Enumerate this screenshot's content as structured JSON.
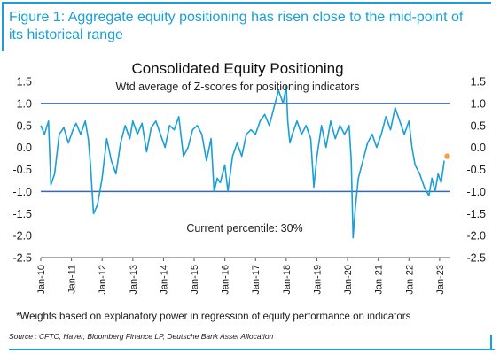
{
  "figure": {
    "title": "Figure 1: Aggregate equity positioning has risen close to the mid-point of its historical range",
    "footnote": "*Weights based on explanatory power in regression of equity performance on indicators",
    "source": "Source : CFTC, Haver, Bloomberg Finance LP, Deutsche Bank Asset Allocation"
  },
  "colors": {
    "accent": "#1a9fd6",
    "series": "#1a9fd6",
    "marker": "#f0a050",
    "reference_lines": "#3366cc"
  },
  "chart_data": {
    "type": "line",
    "title": "Consolidated Equity Positioning",
    "subtitle": "Wtd average of Z-scores for positioning indicators",
    "annotation": "Current percentile: 30%",
    "ylim": [
      -2.5,
      1.5
    ],
    "yticks_left": [
      "1.5",
      "1.0",
      "0.5",
      "0.0",
      "-0.5",
      "-1.0",
      "-1.5",
      "-2.0",
      "-2.5"
    ],
    "yticks_right": [
      "1.5",
      "1.0",
      "0.5",
      "0.0",
      "-0.5",
      "-1.0",
      "-1.5",
      "-2.0",
      "-2.5"
    ],
    "yticks_values": [
      1.5,
      1.0,
      0.5,
      0.0,
      -0.5,
      -1.0,
      -1.5,
      -2.0,
      -2.5
    ],
    "xticks": [
      "Jan-10",
      "Jan-11",
      "Jan-12",
      "Jan-13",
      "Jan-14",
      "Jan-15",
      "Jan-16",
      "Jan-17",
      "Jan-18",
      "Jan-19",
      "Jan-20",
      "Jan-21",
      "Jan-22",
      "Jan-23"
    ],
    "xticks_values": [
      2010,
      2011,
      2012,
      2013,
      2014,
      2015,
      2016,
      2017,
      2018,
      2019,
      2020,
      2021,
      2022,
      2023
    ],
    "xlim": [
      2010,
      2023.35
    ],
    "reference_lines": [
      1.0,
      -1.0
    ],
    "grid": false,
    "series": [
      {
        "x": [
          2010.0,
          2010.12,
          2010.25,
          2010.33,
          2010.45,
          2010.6,
          2010.75,
          2010.9,
          2011.05,
          2011.15,
          2011.3,
          2011.45,
          2011.55,
          2011.62,
          2011.72,
          2011.85,
          2012.0,
          2012.15,
          2012.3,
          2012.45,
          2012.6,
          2012.75,
          2012.9,
          2013.0,
          2013.15,
          2013.3,
          2013.45,
          2013.6,
          2013.75,
          2013.9,
          2014.05,
          2014.2,
          2014.35,
          2014.5,
          2014.65,
          2014.8,
          2014.95,
          2015.1,
          2015.25,
          2015.4,
          2015.55,
          2015.65,
          2015.75,
          2015.85,
          2016.0,
          2016.1,
          2016.25,
          2016.4,
          2016.55,
          2016.7,
          2016.85,
          2017.0,
          2017.15,
          2017.3,
          2017.45,
          2017.6,
          2017.75,
          2017.9,
          2018.0,
          2018.05,
          2018.12,
          2018.2,
          2018.35,
          2018.5,
          2018.65,
          2018.8,
          2018.9,
          2019.0,
          2019.15,
          2019.3,
          2019.45,
          2019.6,
          2019.75,
          2019.9,
          2020.05,
          2020.12,
          2020.18,
          2020.25,
          2020.35,
          2020.5,
          2020.65,
          2020.8,
          2020.95,
          2021.1,
          2021.25,
          2021.4,
          2021.55,
          2021.7,
          2021.85,
          2022.0,
          2022.1,
          2022.2,
          2022.35,
          2022.5,
          2022.65,
          2022.75,
          2022.85,
          2022.95,
          2023.05,
          2023.15
        ],
        "y": [
          0.5,
          0.3,
          0.6,
          -0.85,
          -0.6,
          0.3,
          0.45,
          0.1,
          0.4,
          0.55,
          0.3,
          0.6,
          0.2,
          -0.4,
          -1.5,
          -1.3,
          -0.7,
          0.2,
          -0.3,
          -0.6,
          0.1,
          0.5,
          0.2,
          0.6,
          0.3,
          0.55,
          -0.1,
          0.45,
          0.6,
          0.3,
          0.0,
          0.5,
          0.4,
          0.7,
          -0.2,
          0.0,
          0.4,
          0.5,
          0.3,
          -0.3,
          0.2,
          -1.0,
          -0.7,
          -0.8,
          -0.4,
          -1.0,
          -0.2,
          0.1,
          -0.2,
          0.3,
          0.4,
          0.3,
          0.6,
          0.75,
          0.5,
          0.9,
          1.3,
          1.0,
          1.4,
          0.6,
          0.1,
          0.3,
          0.6,
          0.3,
          0.5,
          0.2,
          -0.9,
          -0.2,
          0.5,
          0.0,
          0.6,
          0.2,
          0.5,
          0.3,
          0.5,
          -0.3,
          -2.05,
          -1.4,
          -0.7,
          -0.3,
          0.1,
          0.3,
          0.0,
          0.3,
          0.7,
          0.4,
          0.9,
          0.6,
          0.3,
          0.6,
          0.0,
          -0.4,
          -0.6,
          -0.9,
          -1.1,
          -0.7,
          -1.0,
          -0.6,
          -0.8,
          -0.3
        ]
      }
    ],
    "latest_point": {
      "x": 2023.25,
      "y": -0.2
    }
  }
}
